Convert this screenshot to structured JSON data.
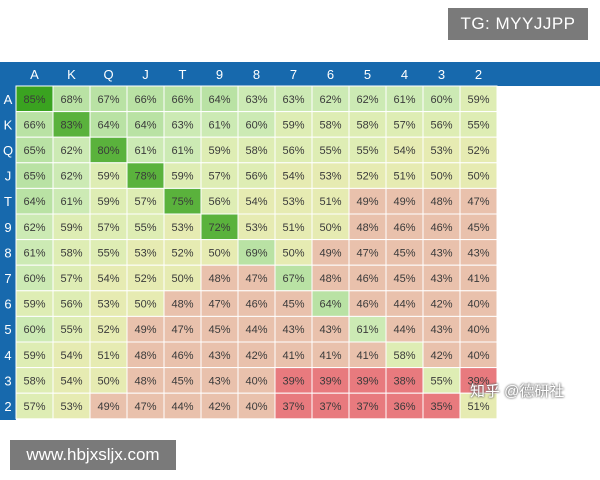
{
  "watermarks": {
    "top": "TG: MYYJJPP",
    "bottom": "www.hbjxsljx.com",
    "overlay": "知乎 @德研社"
  },
  "colors": {
    "header_bg": "#1769ad",
    "header_text": "#ffffff",
    "grid_line": "#ffffff"
  },
  "chart_data": {
    "type": "heatmap",
    "columns": [
      "A",
      "K",
      "Q",
      "J",
      "T",
      "9",
      "8",
      "7",
      "6",
      "5",
      "4",
      "3",
      "2"
    ],
    "rows": [
      "A",
      "K",
      "Q",
      "J",
      "T",
      "9",
      "8",
      "7",
      "6",
      "5",
      "4",
      "3",
      "2"
    ],
    "unit": "%",
    "values": [
      [
        85,
        68,
        67,
        66,
        66,
        64,
        63,
        63,
        62,
        62,
        61,
        60,
        59
      ],
      [
        66,
        83,
        64,
        64,
        63,
        61,
        60,
        59,
        58,
        58,
        57,
        56,
        55
      ],
      [
        65,
        62,
        80,
        61,
        61,
        59,
        58,
        56,
        55,
        55,
        54,
        53,
        52
      ],
      [
        65,
        62,
        59,
        78,
        59,
        57,
        56,
        54,
        53,
        52,
        51,
        50,
        50
      ],
      [
        64,
        61,
        59,
        57,
        75,
        56,
        54,
        53,
        51,
        49,
        49,
        48,
        47
      ],
      [
        62,
        59,
        57,
        55,
        53,
        72,
        53,
        51,
        50,
        48,
        46,
        46,
        45
      ],
      [
        61,
        58,
        55,
        53,
        52,
        50,
        69,
        50,
        49,
        47,
        45,
        43,
        43
      ],
      [
        60,
        57,
        54,
        52,
        50,
        48,
        47,
        67,
        48,
        46,
        45,
        43,
        41
      ],
      [
        59,
        56,
        53,
        50,
        48,
        47,
        46,
        45,
        64,
        46,
        44,
        42,
        40
      ],
      [
        60,
        55,
        52,
        49,
        47,
        45,
        44,
        43,
        43,
        61,
        44,
        43,
        40
      ],
      [
        59,
        54,
        51,
        48,
        46,
        43,
        42,
        41,
        41,
        41,
        58,
        42,
        40
      ],
      [
        58,
        54,
        50,
        48,
        45,
        43,
        40,
        39,
        39,
        39,
        38,
        55,
        39
      ],
      [
        57,
        53,
        49,
        47,
        44,
        42,
        40,
        37,
        37,
        37,
        36,
        35,
        51
      ]
    ]
  }
}
